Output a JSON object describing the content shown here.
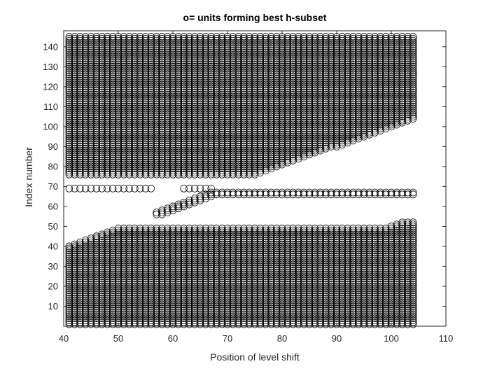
{
  "chart_data": {
    "type": "scatter",
    "title": "o= units forming best h-subset",
    "xlabel": "Position of level shift",
    "ylabel": "Index number",
    "xlim": [
      40,
      110
    ],
    "ylim": [
      0,
      148
    ],
    "xticks": [
      40,
      50,
      60,
      70,
      80,
      90,
      100,
      110
    ],
    "yticks": [
      10,
      20,
      30,
      40,
      50,
      60,
      70,
      80,
      90,
      100,
      110,
      120,
      130,
      140
    ],
    "grid": false,
    "legend": "none",
    "marker": "open-circle",
    "marker_color": "#000000",
    "x_range_of_positions": [
      41,
      104
    ],
    "regions": [
      {
        "name": "bottom",
        "index_from": 1,
        "index_to": "40 + (x - 41) at x≤49, then 49; 50 at x≥100",
        "x_from": 41,
        "x_to": 104
      },
      {
        "name": "middle",
        "index_from": "69 at x≤57, 56 at x=57 rising",
        "index_to": 67,
        "x_from": 41,
        "x_to": 104
      },
      {
        "name": "top",
        "index_from": "76 until x≈75, rising to 104 at x=104",
        "index_to": 145,
        "x_from": 41,
        "x_to": 104
      }
    ]
  }
}
